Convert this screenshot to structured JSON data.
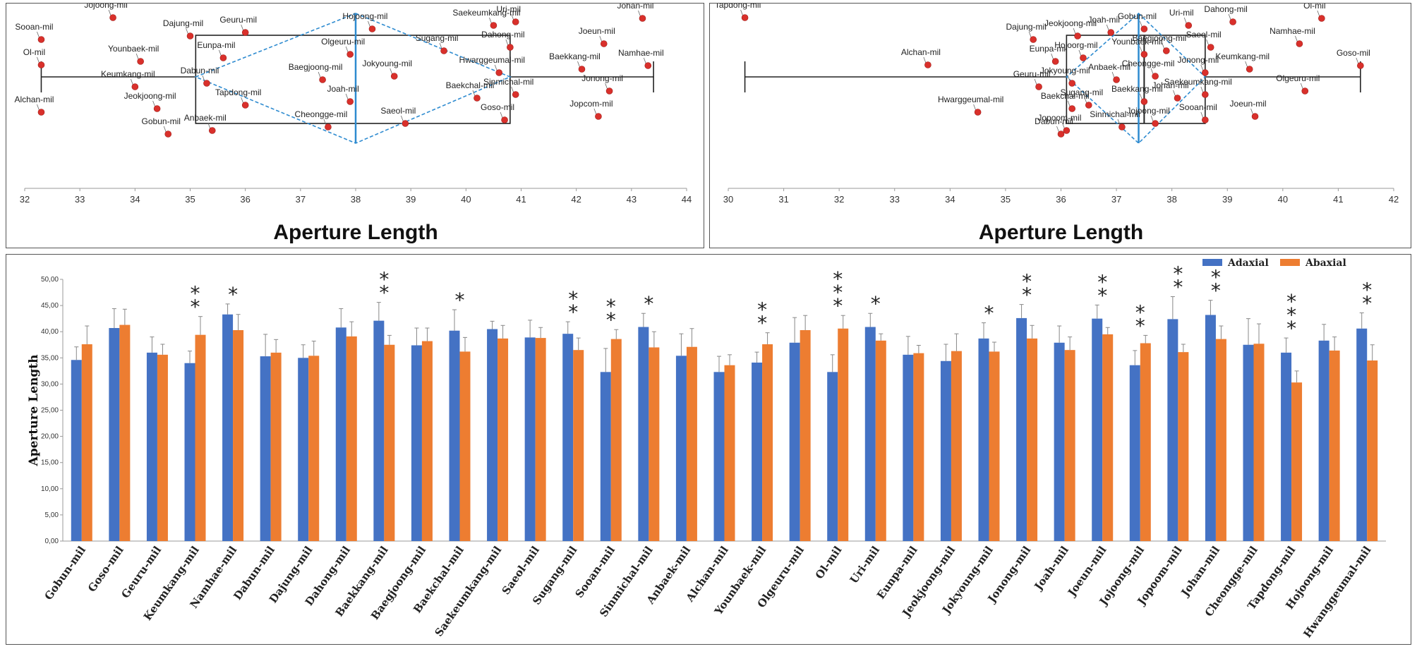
{
  "chart_data": [
    {
      "type": "box-scatter",
      "id": "panel-a",
      "xlabel": "Aperture Length",
      "xlim": [
        32,
        44
      ],
      "xticks": [
        32,
        33,
        34,
        35,
        36,
        37,
        38,
        39,
        40,
        41,
        42,
        43,
        44
      ],
      "box": {
        "whisker_low": 32.3,
        "q1": 35.1,
        "median": 38.0,
        "q3": 40.8,
        "whisker_high": 43.4,
        "mean": 38.0
      },
      "points": [
        {
          "name": "Jojoong-mil",
          "x": 33.6
        },
        {
          "name": "Ol-mil",
          "x": 32.3
        },
        {
          "name": "Alchan-mil",
          "x": 32.3
        },
        {
          "name": "Sooan-mil",
          "x": 32.3
        },
        {
          "name": "Keumkang-mil",
          "x": 34.0
        },
        {
          "name": "Gobun-mil",
          "x": 34.6
        },
        {
          "name": "Younbaek-mil",
          "x": 34.1
        },
        {
          "name": "Jeokjoong-mil",
          "x": 34.4
        },
        {
          "name": "Dajung-mil",
          "x": 35.0
        },
        {
          "name": "Dabun-mil",
          "x": 35.3
        },
        {
          "name": "Anbaek-mil",
          "x": 35.4
        },
        {
          "name": "Eunpa-mil",
          "x": 35.6
        },
        {
          "name": "Tapdong-mil",
          "x": 36.0
        },
        {
          "name": "Geuru-mil",
          "x": 36.0
        },
        {
          "name": "Baegjoong-mil",
          "x": 37.4
        },
        {
          "name": "Cheongge-mil",
          "x": 37.5
        },
        {
          "name": "Olgeuru-mil",
          "x": 37.9
        },
        {
          "name": "Joah-mil",
          "x": 37.9
        },
        {
          "name": "Hojoong-mil",
          "x": 38.3
        },
        {
          "name": "Jokyoung-mil",
          "x": 38.7
        },
        {
          "name": "Saeol-mil",
          "x": 38.9
        },
        {
          "name": "Sugang-mil",
          "x": 39.6
        },
        {
          "name": "Baekchal-mil",
          "x": 40.2
        },
        {
          "name": "Saekeumkang-mil",
          "x": 40.5
        },
        {
          "name": "Hwarggeumal-mil",
          "x": 40.6
        },
        {
          "name": "Goso-mil",
          "x": 40.7
        },
        {
          "name": "Dahong-mil",
          "x": 40.8
        },
        {
          "name": "Sinmichal-mil",
          "x": 40.9
        },
        {
          "name": "Uri-mil",
          "x": 40.9
        },
        {
          "name": "Baekkang-mil",
          "x": 42.1
        },
        {
          "name": "Jopcom-mil",
          "x": 42.4
        },
        {
          "name": "Joeun-mil",
          "x": 42.5
        },
        {
          "name": "Jonong-mil",
          "x": 42.6
        },
        {
          "name": "Johan-mil",
          "x": 43.2
        },
        {
          "name": "Namhae-mil",
          "x": 43.3
        }
      ]
    },
    {
      "type": "box-scatter",
      "id": "panel-b",
      "xlabel": "Aperture Length",
      "xlim": [
        30,
        42
      ],
      "xticks": [
        30,
        31,
        32,
        33,
        34,
        35,
        36,
        37,
        38,
        39,
        40,
        41,
        42
      ],
      "box": {
        "whisker_low": 30.3,
        "q1": 36.1,
        "median": 37.5,
        "q3": 38.6,
        "whisker_high": 41.4,
        "mean": 37.4
      },
      "points": [
        {
          "name": "Tapdong-mil",
          "x": 30.3
        },
        {
          "name": "Alchan-mil",
          "x": 33.6
        },
        {
          "name": "Hwarggeumal-mil",
          "x": 34.5
        },
        {
          "name": "Dajung-mil",
          "x": 35.5
        },
        {
          "name": "Geuru-mil",
          "x": 35.6
        },
        {
          "name": "Dabun-mil",
          "x": 36.0
        },
        {
          "name": "Eunpa-mil",
          "x": 35.9
        },
        {
          "name": "Baekchal-mil",
          "x": 36.2
        },
        {
          "name": "Jeokjoong-mil",
          "x": 36.3
        },
        {
          "name": "Jokyoung-mil",
          "x": 36.2
        },
        {
          "name": "Jopoom-mil",
          "x": 36.1
        },
        {
          "name": "Hojoorg-mil",
          "x": 36.4
        },
        {
          "name": "Sugang-mil",
          "x": 36.5
        },
        {
          "name": "Joah-mil",
          "x": 36.9
        },
        {
          "name": "Anbaek-mil",
          "x": 37.0
        },
        {
          "name": "Sinmichal-mil",
          "x": 37.1
        },
        {
          "name": "Younbaek-mil",
          "x": 37.5
        },
        {
          "name": "Baekkang-mil",
          "x": 37.5
        },
        {
          "name": "Gobun-mil",
          "x": 37.5
        },
        {
          "name": "Cheongge-mil",
          "x": 37.7
        },
        {
          "name": "Jojoong-mil",
          "x": 37.7
        },
        {
          "name": "Baegjoong-mil",
          "x": 37.9
        },
        {
          "name": "Johan-mil",
          "x": 38.1
        },
        {
          "name": "Uri-mil",
          "x": 38.3
        },
        {
          "name": "Jonong-mil",
          "x": 38.6
        },
        {
          "name": "Sooan-mil",
          "x": 38.6
        },
        {
          "name": "Saeol-mil",
          "x": 38.7
        },
        {
          "name": "Saekeumkang-mil",
          "x": 38.6
        },
        {
          "name": "Dahong-mil",
          "x": 39.1
        },
        {
          "name": "Keumkang-mil",
          "x": 39.4
        },
        {
          "name": "Joeun-mil",
          "x": 39.5
        },
        {
          "name": "Namhae-mil",
          "x": 40.3
        },
        {
          "name": "Olgeuru-mil",
          "x": 40.4
        },
        {
          "name": "Ol-mil",
          "x": 40.7
        },
        {
          "name": "Goso-mil",
          "x": 41.4
        }
      ]
    },
    {
      "type": "bar",
      "id": "panel-c",
      "ylabel": "Aperture Length",
      "ylim": [
        0,
        50
      ],
      "yticks": [
        "0,00",
        "5,00",
        "10,00",
        "15,00",
        "20,00",
        "25,00",
        "30,00",
        "35,00",
        "40,00",
        "45,00",
        "50,00"
      ],
      "legend_position": "top-right",
      "categories": [
        "Gobun-mil",
        "Goso-mil",
        "Geuru-mil",
        "Keumkang-mil",
        "Namhae-mil",
        "Dabun-mil",
        "Dajung-mil",
        "Dahong-mil",
        "Baekkang-mil",
        "Baegjoong-mil",
        "Baekchal-mil",
        "Saekeumkang-mil",
        "Saeol-mil",
        "Sugang-mil",
        "Sooan-mil",
        "Sinmichal-mil",
        "Anbaek-mil",
        "Alchan-mil",
        "Younbaek-mil",
        "Olgeuru-mil",
        "Ol-mil",
        "Uri-mil",
        "Eunpa-mil",
        "Jeokjoong-mil",
        "Jokyoung-mil",
        "Jonong-mil",
        "Joah-mil",
        "Joeun-mil",
        "Jojoong-mil",
        "Jopoom-mil",
        "Johan-mil",
        "Cheongge-mil",
        "Tapdong-mil",
        "Hojoong-mil",
        "Hwanggeumal-mil"
      ],
      "series": [
        {
          "name": "Adaxial",
          "color": "#4472C4",
          "values": [
            34.6,
            40.7,
            36.0,
            34.0,
            43.3,
            35.3,
            35.0,
            40.8,
            42.1,
            37.4,
            40.2,
            40.5,
            38.9,
            39.6,
            32.3,
            40.9,
            35.4,
            32.3,
            34.1,
            37.9,
            32.3,
            40.9,
            35.6,
            34.4,
            38.7,
            42.6,
            37.9,
            42.5,
            33.6,
            42.4,
            43.2,
            37.5,
            36.0,
            38.3,
            40.6
          ],
          "errors": [
            2.5,
            3.7,
            3.0,
            2.3,
            2.0,
            4.2,
            2.5,
            3.6,
            3.5,
            3.3,
            4.0,
            1.5,
            3.3,
            2.3,
            4.5,
            2.6,
            4.2,
            3.0,
            2.0,
            4.8,
            3.3,
            2.6,
            3.5,
            3.2,
            3.0,
            2.6,
            3.2,
            2.6,
            2.8,
            4.3,
            2.8,
            5.0,
            2.8,
            3.1,
            3.0
          ],
          "stars": [
            0,
            0,
            0,
            0,
            1,
            0,
            0,
            0,
            0,
            0,
            1,
            0,
            0,
            0,
            0,
            1,
            0,
            0,
            0,
            0,
            0,
            1,
            0,
            0,
            1,
            0,
            0,
            0,
            0,
            0,
            0,
            0,
            0,
            0,
            0
          ]
        },
        {
          "name": "Abaxial",
          "color": "#ED7D31",
          "values": [
            37.6,
            41.3,
            35.6,
            39.4,
            40.3,
            36.0,
            35.4,
            39.1,
            37.5,
            38.2,
            36.2,
            38.7,
            38.8,
            36.5,
            38.6,
            37.0,
            37.1,
            33.6,
            37.6,
            40.3,
            40.6,
            38.3,
            35.9,
            36.3,
            36.2,
            38.7,
            36.5,
            39.5,
            37.8,
            36.1,
            38.6,
            37.7,
            30.3,
            36.4,
            34.5
          ],
          "errors": [
            3.5,
            3.0,
            2.0,
            3.5,
            3.0,
            2.5,
            2.8,
            2.8,
            1.8,
            2.5,
            2.7,
            2.5,
            2.0,
            2.3,
            1.8,
            3.0,
            3.5,
            2.0,
            2.2,
            2.8,
            2.5,
            1.3,
            1.5,
            3.3,
            1.8,
            2.5,
            2.5,
            1.3,
            1.5,
            1.5,
            2.5,
            3.8,
            2.2,
            2.6,
            3.0
          ],
          "stars": [
            0,
            0,
            0,
            2,
            0,
            0,
            0,
            0,
            2,
            0,
            0,
            0,
            0,
            2,
            2,
            0,
            0,
            0,
            2,
            0,
            3,
            0,
            0,
            0,
            0,
            2,
            0,
            2,
            2,
            2,
            2,
            0,
            3,
            0,
            2
          ]
        }
      ]
    }
  ]
}
